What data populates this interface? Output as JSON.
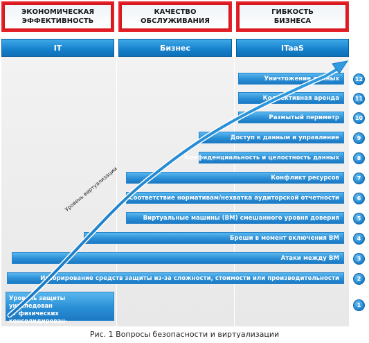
{
  "headers": [
    "ЭКОНОМИЧЕСКАЯ\nЭФФЕКТИВНОСТЬ",
    "КАЧЕСТВО\nОБСЛУЖИВАНИЯ",
    "ГИБКОСТЬ\nБИЗНЕСА"
  ],
  "bands": [
    "IT",
    "Бизнес",
    "ITaaS"
  ],
  "curve_label": "Уровень  виртуализации",
  "base_label": "Уровень защиты унаследован\nот физических консолидирован-\nных серверов",
  "levels": [
    {
      "num": "12",
      "label": "Уничтожение данных"
    },
    {
      "num": "11",
      "label": "Коллективная аренда"
    },
    {
      "num": "10",
      "label": "Размытый периметр"
    },
    {
      "num": "9",
      "label": "Доступ к данным и управление"
    },
    {
      "num": "8",
      "label": "Конфиденциальность и целостность данных"
    },
    {
      "num": "7",
      "label": "Конфликт ресурсов"
    },
    {
      "num": "6",
      "label": "Соответствие нормативам/нехватка аудиторской отчетности"
    },
    {
      "num": "5",
      "label": "Виртуальные машины (ВМ) смешанного уровня доверия"
    },
    {
      "num": "4",
      "label": "Бреши в момент включения ВМ"
    },
    {
      "num": "3",
      "label": "Атаки между ВМ"
    },
    {
      "num": "2",
      "label": "Игнорирование средств защиты из-за сложности, стоимости или производительности"
    },
    {
      "num": "1",
      "label": ""
    }
  ],
  "caption": "Рис. 1 Вопросы безопасности и виртуализации",
  "colors": {
    "header_border": "#d71920",
    "band_blue": "#1580cc",
    "bar_blue": "#2a8fd6"
  }
}
